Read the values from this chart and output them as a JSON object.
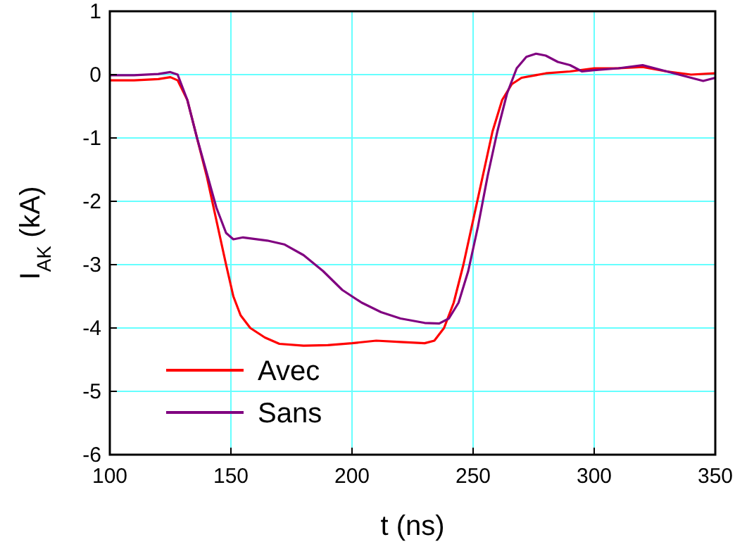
{
  "chart_data": {
    "type": "line",
    "xlabel": "t (ns)",
    "ylabel": "I$_{AK}$ (kA)",
    "xlim": [
      100,
      350
    ],
    "xticks": [
      100,
      150,
      200,
      250,
      300,
      350
    ],
    "ylim": [
      -6,
      1
    ],
    "yticks": [
      -6,
      -5,
      -4,
      -3,
      -2,
      -1,
      0,
      1
    ],
    "grid": true,
    "legend": "bottom",
    "line_style": "solid",
    "marker": "none",
    "series": [
      {
        "name": "Avec",
        "color": "#ff0000",
        "x": [
          100,
          110,
          120,
          125,
          128,
          132,
          136,
          140,
          144,
          148,
          151,
          154,
          158,
          164,
          170,
          180,
          190,
          200,
          210,
          220,
          230,
          234,
          238,
          242,
          246,
          250,
          254,
          258,
          262,
          266,
          270,
          280,
          290,
          300,
          310,
          320,
          330,
          340,
          350
        ],
        "values": [
          -0.09,
          -0.09,
          -0.07,
          -0.04,
          -0.09,
          -0.4,
          -1,
          -1.6,
          -2.3,
          -3.0,
          -3.5,
          -3.8,
          -4.0,
          -4.15,
          -4.25,
          -4.28,
          -4.27,
          -4.24,
          -4.2,
          -4.22,
          -4.24,
          -4.2,
          -4.0,
          -3.6,
          -3.0,
          -2.3,
          -1.6,
          -0.9,
          -0.4,
          -0.15,
          -0.05,
          0.02,
          0.05,
          0.1,
          0.1,
          0.12,
          0.05,
          0,
          0.02
        ]
      },
      {
        "name": "Sans",
        "color": "#800080",
        "x": [
          100,
          110,
          120,
          125,
          128,
          132,
          136,
          140,
          144,
          148,
          151,
          155,
          165,
          172,
          180,
          188,
          196,
          204,
          212,
          220,
          230,
          236,
          240,
          244,
          248,
          252,
          256,
          260,
          264,
          268,
          272,
          276,
          280,
          285,
          290,
          295,
          300,
          310,
          320,
          330,
          340,
          345,
          350
        ],
        "values": [
          -0.01,
          -0.01,
          0.01,
          0.04,
          0,
          -0.4,
          -1,
          -1.55,
          -2.1,
          -2.5,
          -2.6,
          -2.57,
          -2.62,
          -2.68,
          -2.85,
          -3.1,
          -3.4,
          -3.6,
          -3.75,
          -3.85,
          -3.92,
          -3.93,
          -3.85,
          -3.6,
          -3.1,
          -2.4,
          -1.6,
          -0.9,
          -0.3,
          0.1,
          0.28,
          0.33,
          0.3,
          0.2,
          0.15,
          0.05,
          0.07,
          0.1,
          0.15,
          0.05,
          -0.05,
          -0.1,
          -0.05
        ]
      }
    ]
  }
}
